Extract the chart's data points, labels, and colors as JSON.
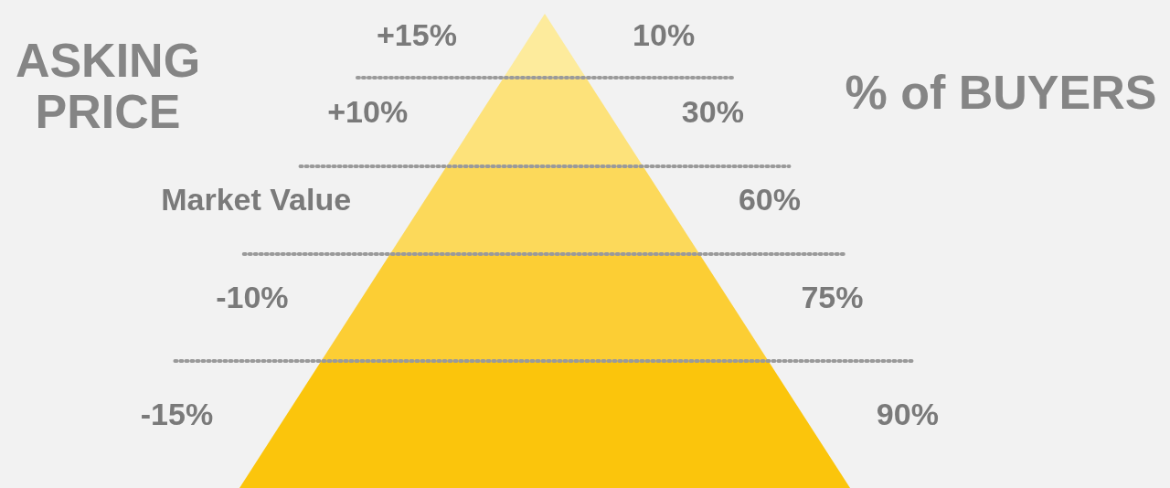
{
  "chart_data": {
    "type": "other",
    "ylabel": "ASKING PRICE",
    "y2label": "% of BUYERS",
    "categories": [
      "+15%",
      "+10%",
      "Market Value",
      "-10%",
      "-15%"
    ],
    "values": [
      10,
      30,
      60,
      75,
      90
    ],
    "value_labels": [
      "10%",
      "30%",
      "60%",
      "75%",
      "90%"
    ],
    "colors": [
      "#fdeb9c",
      "#fde27a",
      "#fcd95a",
      "#fcce34",
      "#fbc50c"
    ]
  }
}
